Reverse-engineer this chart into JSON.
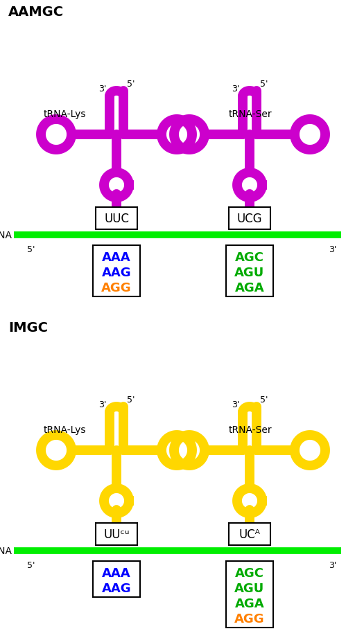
{
  "title_top": "AAMGC",
  "title_bottom": "IMGC",
  "color_top": "#CC00CC",
  "color_bottom": "#FFD700",
  "green_line": "#00EE00",
  "mrna_label": "mRNA",
  "trna_lys_label": "tRNA-Lys",
  "trna_ser_label": "tRNA-Ser",
  "top_anticodon_lys": "UUC",
  "top_anticodon_ser": "UCG",
  "bot_anticodon_lys": "UUᶜᵘ",
  "bot_anticodon_ser": "UCᴬ",
  "top_lys_codons": [
    [
      "AAA",
      "#0000FF"
    ],
    [
      "AAG",
      "#0000FF"
    ],
    [
      "AGG",
      "#FF8000"
    ]
  ],
  "top_ser_codons": [
    [
      "AGC",
      "#00AA00"
    ],
    [
      "AGU",
      "#00AA00"
    ],
    [
      "AGA",
      "#00AA00"
    ]
  ],
  "bot_lys_codons": [
    [
      "AAA",
      "#0000FF"
    ],
    [
      "AAG",
      "#0000FF"
    ]
  ],
  "bot_ser_codons": [
    [
      "AGC",
      "#00AA00"
    ],
    [
      "AGU",
      "#00AA00"
    ],
    [
      "AGA",
      "#00AA00"
    ],
    [
      "AGG",
      "#FF8000"
    ]
  ],
  "bg": "#FFFFFF"
}
